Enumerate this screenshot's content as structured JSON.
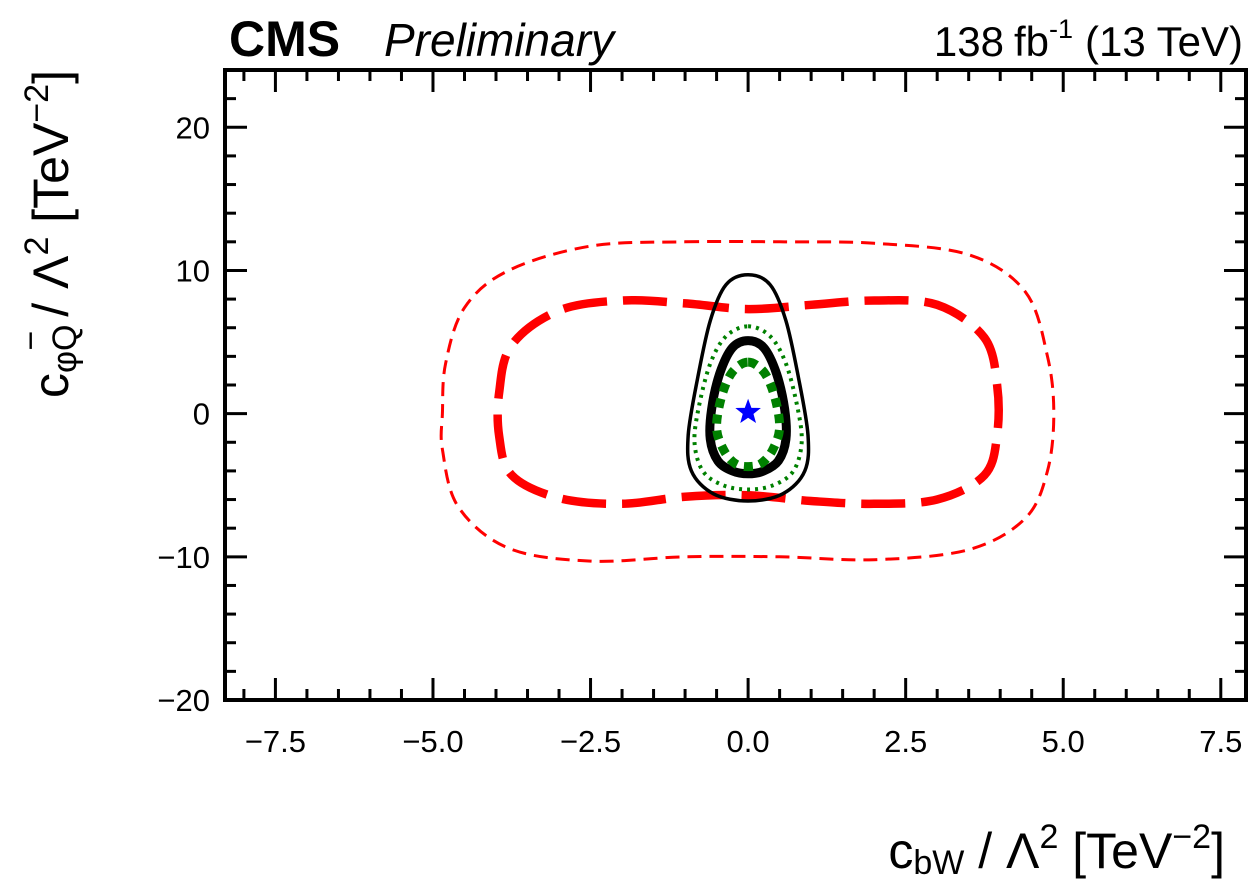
{
  "header": {
    "experiment": "CMS",
    "status": "Preliminary",
    "lumi_value": "138",
    "lumi_unit": "fb",
    "lumi_exp": "-1",
    "energy": "(13 TeV)"
  },
  "chart_data": {
    "type": "line",
    "title": "",
    "xlabel": {
      "main": "c",
      "sub": "bW",
      "rest": " / Λ",
      "sup": "2",
      "unit": " [TeV",
      "unit_sup": "−2",
      "close": "]"
    },
    "ylabel": {
      "main": "c",
      "sub": "φQ",
      "bar": "−",
      "rest": " / Λ",
      "sup": "2",
      "unit": " [TeV",
      "unit_sup": "−2",
      "close": "]"
    },
    "xlim": [
      -8.3,
      7.9
    ],
    "ylim": [
      -20.0,
      24.0
    ],
    "x_ticks": [
      -7.5,
      -5.0,
      -2.5,
      0.0,
      2.5,
      5.0,
      7.5
    ],
    "x_tick_labels": [
      "−7.5",
      "−5.0",
      "−2.5",
      "0.0",
      "2.5",
      "5.0",
      "7.5"
    ],
    "y_ticks": [
      -20,
      -10,
      0,
      10,
      20
    ],
    "y_tick_labels": [
      "−20",
      "−10",
      "0",
      "10",
      "20"
    ],
    "grid": false,
    "best_fit": {
      "x": 0.0,
      "y": 0.1,
      "marker": "star",
      "color": "#0000ff"
    },
    "series": [
      {
        "color": "#ff0000",
        "style": "thin-dashed",
        "points": [
          [
            -1.0,
            12.0
          ],
          [
            0.5,
            12.0
          ],
          [
            2.0,
            11.9
          ],
          [
            3.5,
            11.1
          ],
          [
            4.4,
            8.5
          ],
          [
            4.75,
            4.0
          ],
          [
            4.85,
            0.0
          ],
          [
            4.75,
            -4.0
          ],
          [
            4.4,
            -7.3
          ],
          [
            3.5,
            -9.5
          ],
          [
            2.0,
            -10.2
          ],
          [
            0.5,
            -10.0
          ],
          [
            -1.0,
            -10.0
          ],
          [
            -2.5,
            -10.3
          ],
          [
            -3.8,
            -9.4
          ],
          [
            -4.6,
            -6.5
          ],
          [
            -4.85,
            -2.5
          ],
          [
            -4.85,
            0.0
          ],
          [
            -4.8,
            3.5
          ],
          [
            -4.5,
            7.4
          ],
          [
            -3.8,
            10.0
          ],
          [
            -2.5,
            11.7
          ]
        ]
      },
      {
        "color": "#ff0000",
        "style": "thick-dashed",
        "points": [
          [
            -1.0,
            7.7
          ],
          [
            0.0,
            7.3
          ],
          [
            1.0,
            7.6
          ],
          [
            2.0,
            7.9
          ],
          [
            3.0,
            7.6
          ],
          [
            3.75,
            5.3
          ],
          [
            3.95,
            2.0
          ],
          [
            3.95,
            -1.5
          ],
          [
            3.75,
            -4.3
          ],
          [
            3.0,
            -6.0
          ],
          [
            2.0,
            -6.3
          ],
          [
            1.0,
            -6.1
          ],
          [
            0.0,
            -5.7
          ],
          [
            -1.0,
            -5.8
          ],
          [
            -2.0,
            -6.3
          ],
          [
            -3.0,
            -5.9
          ],
          [
            -3.75,
            -4.3
          ],
          [
            -3.95,
            -1.6
          ],
          [
            -3.95,
            1.5
          ],
          [
            -3.75,
            4.8
          ],
          [
            -3.0,
            7.2
          ],
          [
            -2.0,
            7.9
          ]
        ]
      },
      {
        "color": "#000000",
        "style": "thin-solid",
        "points": [
          [
            0.0,
            9.7
          ],
          [
            0.35,
            9.0
          ],
          [
            0.6,
            6.5
          ],
          [
            0.8,
            2.5
          ],
          [
            0.95,
            -1.5
          ],
          [
            0.9,
            -4.0
          ],
          [
            0.55,
            -5.6
          ],
          [
            0.0,
            -6.1
          ],
          [
            -0.55,
            -5.6
          ],
          [
            -0.9,
            -4.0
          ],
          [
            -0.95,
            -1.5
          ],
          [
            -0.8,
            2.5
          ],
          [
            -0.6,
            6.5
          ],
          [
            -0.35,
            9.0
          ]
        ]
      },
      {
        "color": "#008000",
        "style": "thin-dotted",
        "points": [
          [
            0.0,
            6.1
          ],
          [
            0.35,
            5.4
          ],
          [
            0.6,
            3.5
          ],
          [
            0.78,
            0.5
          ],
          [
            0.85,
            -2.0
          ],
          [
            0.72,
            -4.0
          ],
          [
            0.4,
            -5.0
          ],
          [
            0.0,
            -5.3
          ],
          [
            -0.4,
            -5.0
          ],
          [
            -0.72,
            -4.0
          ],
          [
            -0.85,
            -2.0
          ],
          [
            -0.78,
            0.5
          ],
          [
            -0.6,
            3.5
          ],
          [
            -0.35,
            5.4
          ]
        ]
      },
      {
        "color": "#000000",
        "style": "thick-solid",
        "points": [
          [
            0.0,
            5.1
          ],
          [
            0.25,
            4.6
          ],
          [
            0.45,
            2.8
          ],
          [
            0.58,
            0.3
          ],
          [
            0.6,
            -1.8
          ],
          [
            0.48,
            -3.3
          ],
          [
            0.25,
            -4.0
          ],
          [
            0.0,
            -4.2
          ],
          [
            -0.25,
            -4.0
          ],
          [
            -0.48,
            -3.3
          ],
          [
            -0.6,
            -1.8
          ],
          [
            -0.58,
            0.3
          ],
          [
            -0.45,
            2.8
          ],
          [
            -0.25,
            4.6
          ]
        ]
      },
      {
        "color": "#008000",
        "style": "thick-dotted",
        "points": [
          [
            0.0,
            3.6
          ],
          [
            0.25,
            2.9
          ],
          [
            0.42,
            1.2
          ],
          [
            0.5,
            -1.0
          ],
          [
            0.38,
            -2.6
          ],
          [
            0.2,
            -3.5
          ],
          [
            0.0,
            -3.7
          ],
          [
            -0.2,
            -3.5
          ],
          [
            -0.38,
            -2.6
          ],
          [
            -0.5,
            -1.0
          ],
          [
            -0.42,
            1.2
          ],
          [
            -0.25,
            2.9
          ]
        ]
      }
    ]
  }
}
